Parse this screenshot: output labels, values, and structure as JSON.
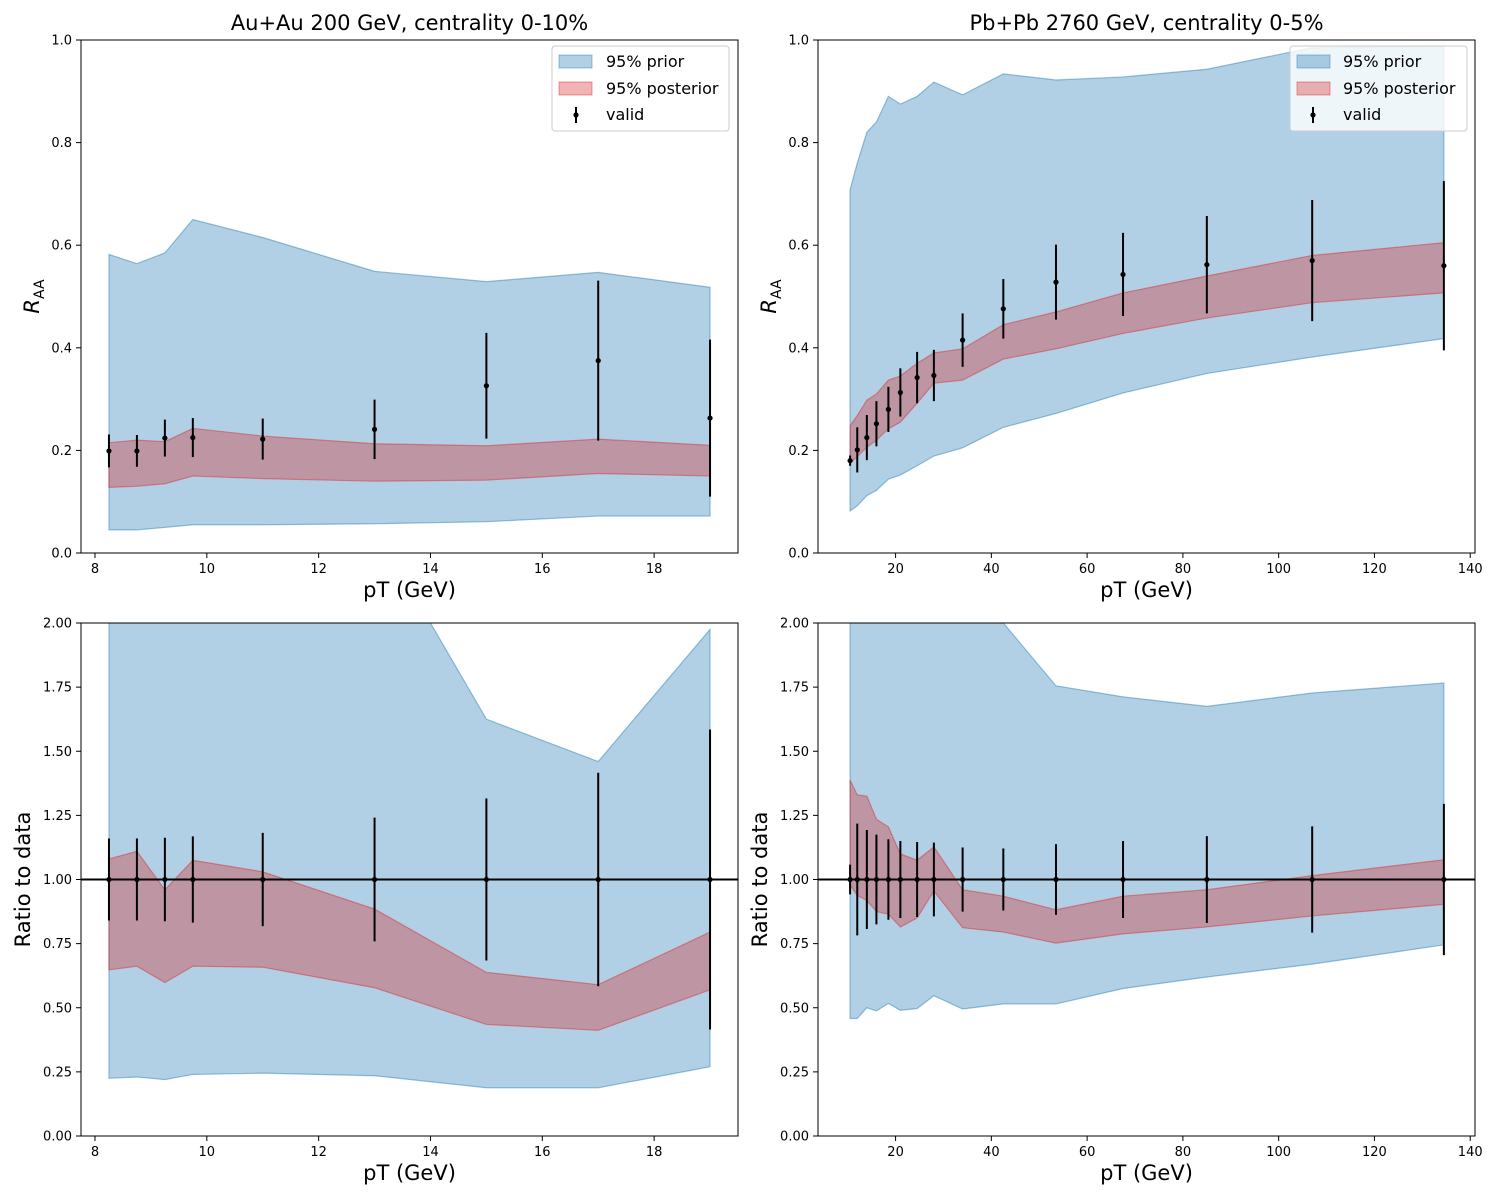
{
  "figure": {
    "colors": {
      "prior": "#1f77b4",
      "posterior": "#d62728",
      "valid": "#000000"
    },
    "legend": {
      "prior": "95% prior",
      "posterior": "95% posterior",
      "valid": "valid"
    }
  },
  "chart_data": [
    {
      "type": "area",
      "title": "Au+Au 200 GeV, centrality 0-10%",
      "xlabel": "pT (GeV)",
      "ylabel": "R_AA",
      "xlim": [
        7.75,
        19.5
      ],
      "ylim": [
        0,
        1.0
      ],
      "xticks": [
        8,
        10,
        12,
        14,
        16,
        18
      ],
      "yticks": [
        0.0,
        0.2,
        0.4,
        0.6,
        0.8,
        1.0
      ],
      "ytick_decimals": 1,
      "legend_position": "top-right",
      "reference_line": null,
      "x": [
        8.25,
        8.75,
        9.25,
        9.75,
        11.0,
        13.0,
        15.0,
        17.0,
        19.0
      ],
      "prior": {
        "name": "95% prior",
        "upper": [
          0.582,
          0.564,
          0.585,
          0.65,
          0.615,
          0.549,
          0.529,
          0.547,
          0.518
        ],
        "lower": [
          0.045,
          0.045,
          0.05,
          0.055,
          0.055,
          0.057,
          0.061,
          0.072,
          0.072
        ]
      },
      "posterior": {
        "name": "95% posterior",
        "upper": [
          0.215,
          0.22,
          0.217,
          0.243,
          0.228,
          0.213,
          0.209,
          0.222,
          0.21
        ],
        "lower": [
          0.128,
          0.13,
          0.135,
          0.15,
          0.145,
          0.14,
          0.142,
          0.155,
          0.15
        ]
      },
      "valid": {
        "name": "valid",
        "y": [
          0.199,
          0.199,
          0.224,
          0.225,
          0.222,
          0.241,
          0.326,
          0.375,
          0.263
        ],
        "err": [
          0.032,
          0.031,
          0.036,
          0.038,
          0.04,
          0.058,
          0.103,
          0.156,
          0.153
        ]
      }
    },
    {
      "type": "area",
      "title": "Pb+Pb 2760 GeV, centrality 0-5%",
      "xlabel": "pT (GeV)",
      "ylabel": "R_AA",
      "xlim": [
        3.8,
        141
      ],
      "ylim": [
        0,
        1.0
      ],
      "xticks": [
        20,
        40,
        60,
        80,
        100,
        120,
        140
      ],
      "yticks": [
        0.0,
        0.2,
        0.4,
        0.6,
        0.8,
        1.0
      ],
      "ytick_decimals": 1,
      "legend_position": "top-right",
      "reference_line": null,
      "x": [
        10.5,
        12.0,
        14.0,
        16.0,
        18.5,
        21.0,
        24.5,
        28.0,
        34.0,
        42.5,
        53.5,
        67.5,
        85.0,
        107.0,
        134.5
      ],
      "prior": {
        "name": "95% prior",
        "upper": [
          0.708,
          0.76,
          0.82,
          0.84,
          0.89,
          0.875,
          0.89,
          0.918,
          0.893,
          0.934,
          0.922,
          0.928,
          0.943,
          0.985,
          0.988
        ],
        "lower": [
          0.082,
          0.092,
          0.112,
          0.122,
          0.144,
          0.152,
          0.17,
          0.189,
          0.205,
          0.245,
          0.272,
          0.312,
          0.35,
          0.382,
          0.418
        ]
      },
      "posterior": {
        "name": "95% posterior",
        "upper": [
          0.248,
          0.268,
          0.298,
          0.31,
          0.337,
          0.345,
          0.37,
          0.39,
          0.398,
          0.445,
          0.47,
          0.507,
          0.54,
          0.58,
          0.605
        ],
        "lower": [
          0.175,
          0.188,
          0.206,
          0.22,
          0.242,
          0.255,
          0.292,
          0.331,
          0.337,
          0.378,
          0.398,
          0.428,
          0.458,
          0.488,
          0.507
        ]
      },
      "valid": {
        "name": "valid",
        "y": [
          0.18,
          0.201,
          0.225,
          0.252,
          0.28,
          0.313,
          0.342,
          0.346,
          0.415,
          0.476,
          0.528,
          0.543,
          0.562,
          0.57,
          0.56
        ],
        "err": [
          0.01,
          0.044,
          0.044,
          0.044,
          0.044,
          0.047,
          0.05,
          0.05,
          0.052,
          0.058,
          0.073,
          0.081,
          0.095,
          0.118,
          0.165
        ]
      }
    },
    {
      "type": "area",
      "title": "",
      "xlabel": "pT (GeV)",
      "ylabel": "Ratio to data",
      "xlim": [
        7.75,
        19.5
      ],
      "ylim": [
        0,
        2.0
      ],
      "xticks": [
        8,
        10,
        12,
        14,
        16,
        18
      ],
      "yticks": [
        0.0,
        0.25,
        0.5,
        0.75,
        1.0,
        1.25,
        1.5,
        1.75,
        2.0
      ],
      "ytick_decimals": 2,
      "legend_position": "none",
      "reference_line": 1.0,
      "x": [
        8.25,
        8.75,
        9.25,
        9.75,
        11.0,
        13.0,
        15.0,
        17.0,
        19.0
      ],
      "prior": {
        "name": "95% prior",
        "upper": [
          2.6,
          2.6,
          2.6,
          2.6,
          2.6,
          2.6,
          1.625,
          1.46,
          1.975
        ],
        "upper_x": [
          8.25,
          8.75,
          9.25,
          9.75,
          11.0,
          13.0,
          14.0,
          15.0,
          17.0,
          19.0
        ],
        "upper_y": [
          2.6,
          2.6,
          2.6,
          2.6,
          2.6,
          2.6,
          2.0,
          1.625,
          1.46,
          1.975
        ],
        "lower": [
          0.225,
          0.23,
          0.22,
          0.24,
          0.245,
          0.235,
          0.188,
          0.188,
          0.27
        ]
      },
      "posterior": {
        "name": "95% posterior",
        "upper": [
          1.08,
          1.11,
          0.96,
          1.075,
          1.03,
          0.885,
          0.638,
          0.59,
          0.795
        ],
        "lower": [
          0.648,
          0.662,
          0.598,
          0.662,
          0.658,
          0.578,
          0.435,
          0.412,
          0.57
        ]
      },
      "valid": {
        "name": "valid",
        "y": [
          1,
          1,
          1,
          1,
          1,
          1,
          1,
          1,
          1
        ],
        "err": [
          0.16,
          0.16,
          0.163,
          0.168,
          0.182,
          0.241,
          0.316,
          0.416,
          0.585
        ]
      }
    },
    {
      "type": "area",
      "title": "",
      "xlabel": "pT (GeV)",
      "ylabel": "Ratio to data",
      "xlim": [
        3.8,
        141
      ],
      "ylim": [
        0,
        2.0
      ],
      "xticks": [
        20,
        40,
        60,
        80,
        100,
        120,
        140
      ],
      "yticks": [
        0.0,
        0.25,
        0.5,
        0.75,
        1.0,
        1.25,
        1.5,
        1.75,
        2.0
      ],
      "ytick_decimals": 2,
      "legend_position": "none",
      "reference_line": 1.0,
      "x": [
        10.5,
        12.0,
        14.0,
        16.0,
        18.5,
        21.0,
        24.5,
        28.0,
        34.0,
        42.5,
        53.5,
        67.5,
        85.0,
        107.0,
        134.5
      ],
      "prior": {
        "name": "95% prior",
        "upper_x": [
          10.5,
          42.5,
          53.5,
          67.5,
          85.0,
          107.0,
          134.5
        ],
        "upper_y": [
          2.6,
          2.0,
          1.755,
          1.712,
          1.675,
          1.727,
          1.766
        ],
        "lower": [
          0.458,
          0.458,
          0.5,
          0.488,
          0.517,
          0.49,
          0.497,
          0.547,
          0.495,
          0.515,
          0.515,
          0.575,
          0.62,
          0.67,
          0.745
        ]
      },
      "posterior": {
        "name": "95% posterior",
        "upper": [
          1.388,
          1.33,
          1.325,
          1.235,
          1.205,
          1.1,
          1.075,
          1.127,
          0.96,
          0.935,
          0.882,
          0.935,
          0.96,
          1.015,
          1.077
        ],
        "lower": [
          0.978,
          0.938,
          0.918,
          0.875,
          0.865,
          0.815,
          0.85,
          0.955,
          0.812,
          0.795,
          0.752,
          0.788,
          0.815,
          0.858,
          0.903
        ]
      },
      "valid": {
        "name": "valid",
        "y": [
          1,
          1,
          1,
          1,
          1,
          1,
          1,
          1,
          1,
          1,
          1,
          1,
          1,
          1,
          1
        ],
        "err": [
          0.058,
          0.218,
          0.193,
          0.175,
          0.157,
          0.15,
          0.146,
          0.144,
          0.125,
          0.121,
          0.138,
          0.15,
          0.169,
          0.207,
          0.295
        ]
      }
    }
  ]
}
